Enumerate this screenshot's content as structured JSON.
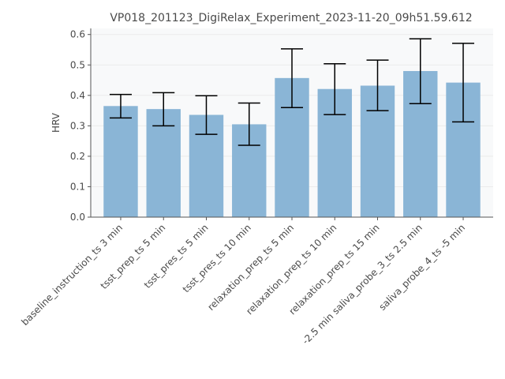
{
  "chart_data": {
    "type": "bar",
    "title": "VP018_201123_DigiRelax_Experiment_2023-11-20_09h51.59.612",
    "xlabel": "",
    "ylabel": "HRV",
    "ylim": [
      0,
      0.62
    ],
    "yticks": [
      0.0,
      0.1,
      0.2,
      0.3,
      0.4,
      0.5,
      0.6
    ],
    "ytick_labels": [
      "0.0",
      "0.1",
      "0.2",
      "0.3",
      "0.4",
      "0.5",
      "0.6"
    ],
    "grid": true,
    "categories": [
      "baseline_instruction_ts 3 min",
      "tsst_prep_ts 5 min",
      "tsst_pres_ts 5 min",
      "tsst_pres_ts 10 min",
      "relaxation_prep_ts 5 min",
      "relaxation_prep_ts 10 min",
      "relaxation_prep_ts 15 min",
      "-2.5 min saliva_probe_3_ts 2.5 min",
      "saliva_probe_4_ts -5 min"
    ],
    "values": [
      0.365,
      0.355,
      0.336,
      0.305,
      0.457,
      0.421,
      0.432,
      0.48,
      0.442
    ],
    "error_low": [
      0.326,
      0.3,
      0.272,
      0.236,
      0.36,
      0.337,
      0.35,
      0.373,
      0.313
    ],
    "error_high": [
      0.403,
      0.409,
      0.399,
      0.375,
      0.553,
      0.504,
      0.516,
      0.586,
      0.571
    ],
    "colors": {
      "bar": "#8ab5d6",
      "error_bar": "#000000",
      "background": "#f8f9fa",
      "grid": "#ebebeb",
      "axis": "#555555"
    }
  }
}
